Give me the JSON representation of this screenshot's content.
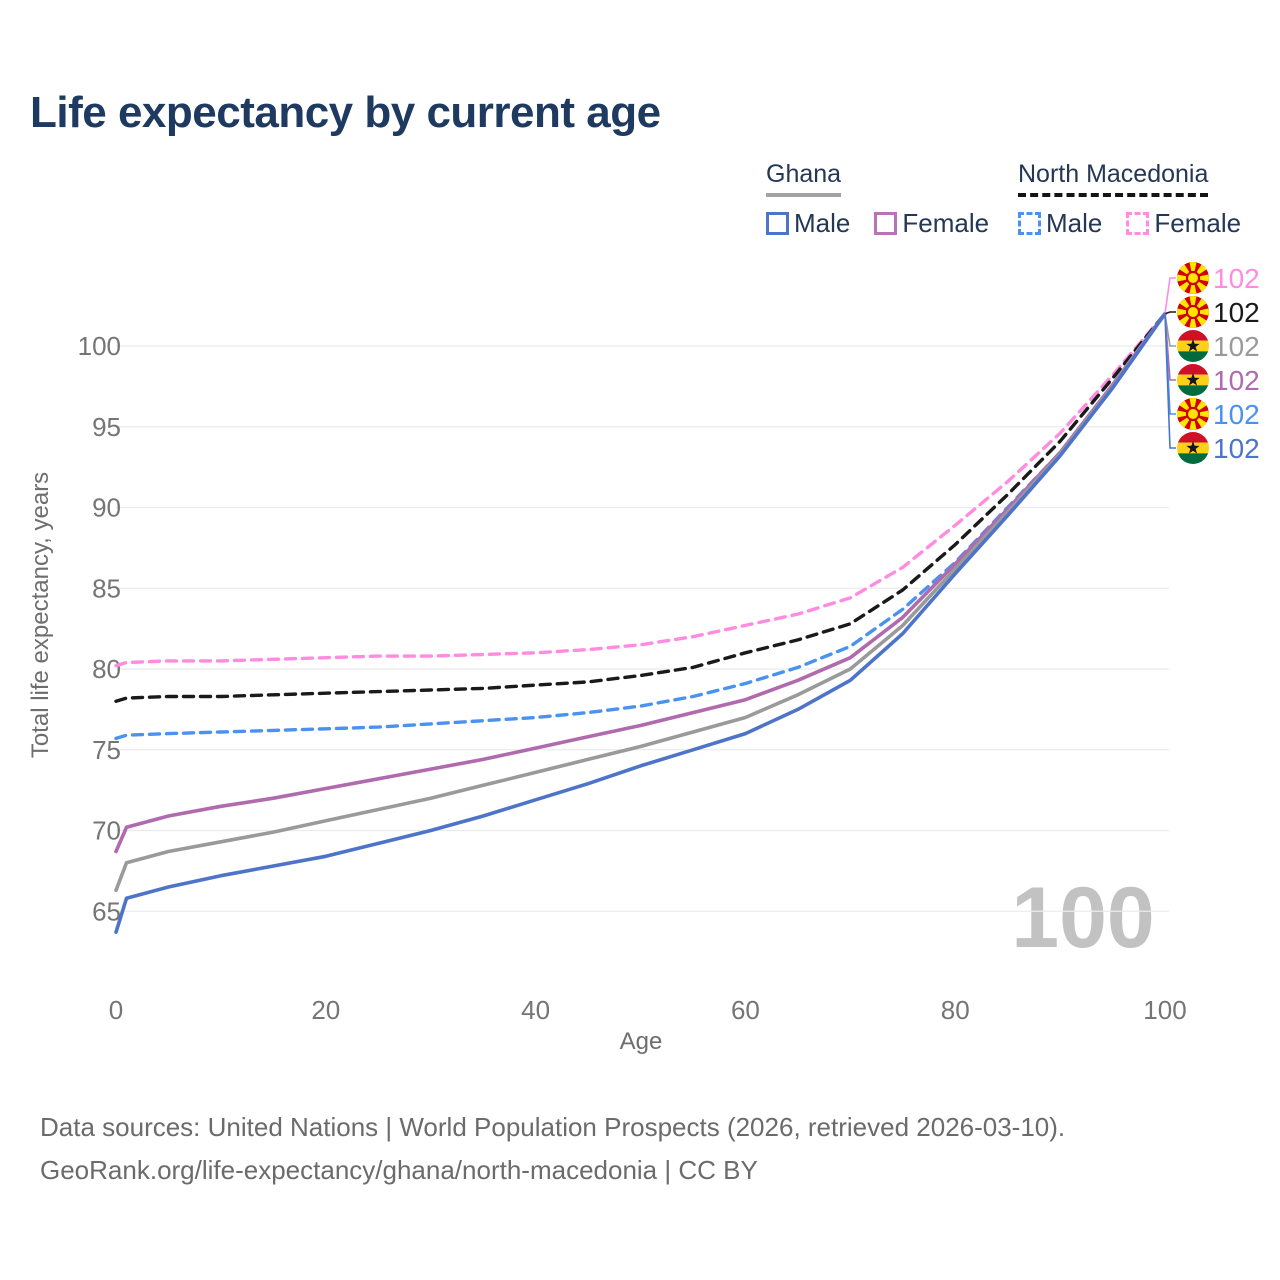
{
  "title": "Life expectancy by current age",
  "legend": {
    "ghana": {
      "title": "Ghana",
      "male_label": "Male",
      "female_label": "Female"
    },
    "north_macedonia": {
      "title": "North Macedonia",
      "male_label": "Male",
      "female_label": "Female"
    }
  },
  "axes": {
    "y_title": "Total life expectancy, years",
    "x_title": "Age"
  },
  "footer": {
    "line1": "Data sources: United Nations | World Population Prospects (2026, retrieved 2026-03-10).",
    "line2": "GeoRank.org/life-expectancy/ghana/north-macedonia | CC BY"
  },
  "colors": {
    "title_text": "#1f3a60",
    "ghana_male": "#4e74c9",
    "ghana_female": "#b06aae",
    "ghana_total": "#9a9a9a",
    "nm_male": "#4992f0",
    "nm_female": "#ff8ce1",
    "nm_total": "#1a1a1a",
    "gridline": "#ebebeb",
    "tick_text": "#757575"
  },
  "chart_data": {
    "type": "line",
    "title": "Life expectancy by current age",
    "xlabel": "Age",
    "ylabel": "Total life expectancy, years",
    "xlim": [
      0,
      100
    ],
    "ylim": [
      63,
      103
    ],
    "xticks": [
      0,
      20,
      40,
      60,
      80,
      100
    ],
    "yticks": [
      65,
      70,
      75,
      80,
      85,
      90,
      95,
      100
    ],
    "grid": "horizontal",
    "legend_position": "top-right",
    "current_age_display": "100",
    "x": [
      0,
      1,
      5,
      10,
      15,
      20,
      25,
      30,
      35,
      40,
      45,
      50,
      55,
      60,
      65,
      70,
      75,
      80,
      85,
      90,
      95,
      100
    ],
    "series": [
      {
        "id": "nm_female",
        "name": "North Macedonia Female",
        "country": "North Macedonia",
        "sex": "Female",
        "style": "dashed",
        "color": "#ff8ce1",
        "end_value": 102,
        "values": [
          80.2,
          80.4,
          80.5,
          80.5,
          80.6,
          80.7,
          80.8,
          80.8,
          80.9,
          81.0,
          81.2,
          81.5,
          82.0,
          82.7,
          83.4,
          84.4,
          86.3,
          88.9,
          91.6,
          94.6,
          98.2,
          102
        ]
      },
      {
        "id": "nm_total",
        "name": "North Macedonia Both sexes",
        "country": "North Macedonia",
        "sex": "Both",
        "style": "dashed",
        "color": "#1a1a1a",
        "end_value": 102,
        "values": [
          78.0,
          78.2,
          78.3,
          78.3,
          78.4,
          78.5,
          78.6,
          78.7,
          78.8,
          79.0,
          79.2,
          79.6,
          80.1,
          81.0,
          81.8,
          82.8,
          84.9,
          87.7,
          90.8,
          94.1,
          98.0,
          102
        ]
      },
      {
        "id": "nm_male",
        "name": "North Macedonia Male",
        "country": "North Macedonia",
        "sex": "Male",
        "style": "dashed",
        "color": "#4992f0",
        "end_value": 102,
        "values": [
          75.7,
          75.9,
          76.0,
          76.1,
          76.2,
          76.3,
          76.4,
          76.6,
          76.8,
          77.0,
          77.3,
          77.7,
          78.3,
          79.1,
          80.1,
          81.4,
          83.7,
          86.6,
          90.0,
          93.4,
          97.6,
          102
        ]
      },
      {
        "id": "ghana_female",
        "name": "Ghana Female",
        "country": "Ghana",
        "sex": "Female",
        "style": "solid",
        "color": "#b06aae",
        "end_value": 102,
        "values": [
          68.7,
          70.2,
          70.9,
          71.5,
          72.0,
          72.6,
          73.2,
          73.8,
          74.4,
          75.1,
          75.8,
          76.5,
          77.3,
          78.1,
          79.3,
          80.7,
          83.2,
          86.5,
          89.9,
          93.4,
          97.6,
          102
        ]
      },
      {
        "id": "ghana_total",
        "name": "Ghana Both sexes",
        "country": "Ghana",
        "sex": "Both",
        "style": "solid",
        "color": "#9a9a9a",
        "end_value": 102,
        "values": [
          66.3,
          68.0,
          68.7,
          69.3,
          69.9,
          70.6,
          71.3,
          72.0,
          72.8,
          73.6,
          74.4,
          75.2,
          76.1,
          77.0,
          78.4,
          80.0,
          82.7,
          86.2,
          89.7,
          93.3,
          97.5,
          102
        ]
      },
      {
        "id": "ghana_male",
        "name": "Ghana Male",
        "country": "Ghana",
        "sex": "Male",
        "style": "solid",
        "color": "#4e74c9",
        "end_value": 102,
        "values": [
          63.7,
          65.8,
          66.5,
          67.2,
          67.8,
          68.4,
          69.2,
          70.0,
          70.9,
          71.9,
          72.9,
          74.0,
          75.0,
          76.0,
          77.5,
          79.3,
          82.2,
          85.9,
          89.5,
          93.2,
          97.4,
          102
        ]
      }
    ],
    "end_labels": [
      {
        "flag": "north-macedonia",
        "series": "nm_female",
        "value": "102",
        "color": "#ff8ce1"
      },
      {
        "flag": "north-macedonia",
        "series": "nm_total",
        "value": "102",
        "color": "#1a1a1a"
      },
      {
        "flag": "ghana",
        "series": "ghana_total",
        "value": "102",
        "color": "#9a9a9a"
      },
      {
        "flag": "ghana",
        "series": "ghana_female",
        "value": "102",
        "color": "#b06aae"
      },
      {
        "flag": "north-macedonia",
        "series": "nm_male",
        "value": "102",
        "color": "#4992f0"
      },
      {
        "flag": "ghana",
        "series": "ghana_male",
        "value": "102",
        "color": "#4e74c9"
      }
    ]
  }
}
